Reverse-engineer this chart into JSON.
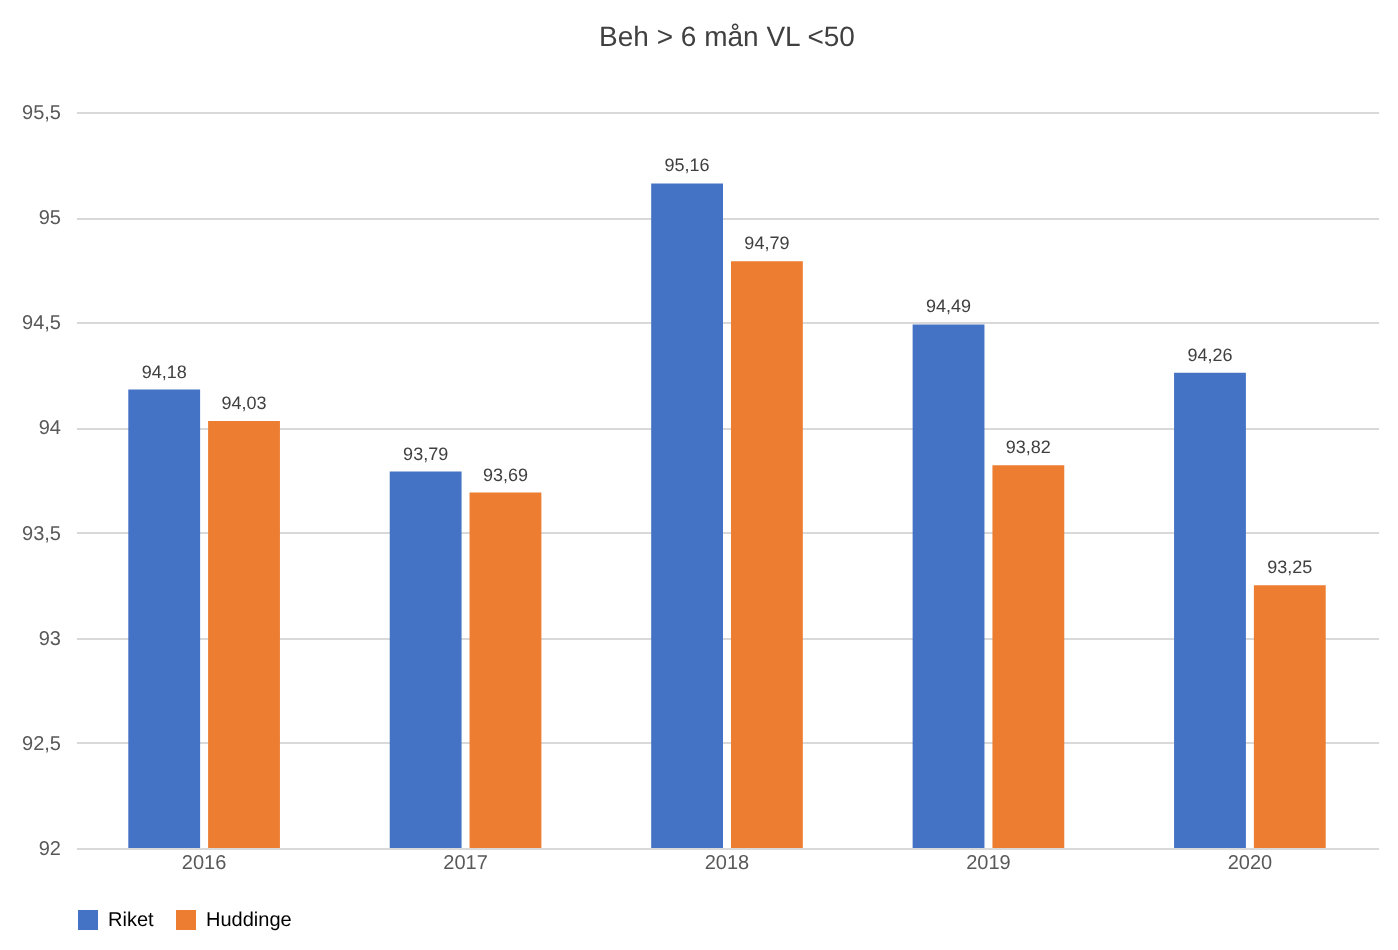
{
  "chart_data": {
    "type": "bar",
    "title": "Beh > 6 mån VL <50",
    "categories": [
      "2016",
      "2017",
      "2018",
      "2019",
      "2020"
    ],
    "series": [
      {
        "name": "Riket",
        "color": "#4472c4",
        "values": [
          94.18,
          93.79,
          95.16,
          94.49,
          94.26
        ],
        "value_labels": [
          "94,18",
          "93,79",
          "95,16",
          "94,49",
          "94,26"
        ]
      },
      {
        "name": "Huddinge",
        "color": "#ed7d31",
        "values": [
          94.03,
          93.69,
          94.79,
          93.82,
          93.25
        ],
        "value_labels": [
          "94,03",
          "93,69",
          "94,79",
          "93,82",
          "93,25"
        ]
      }
    ],
    "ylim": [
      92,
      95.5
    ],
    "yticks": [
      92,
      {
        "value": 92.5,
        "label": "92,5"
      },
      93,
      {
        "value": 93.5,
        "label": "93,5"
      },
      94,
      {
        "value": 94.5,
        "label": "94,5"
      },
      95,
      {
        "value": 95.5,
        "label": "95,5"
      }
    ],
    "grid": "y",
    "legend": "bottom"
  }
}
